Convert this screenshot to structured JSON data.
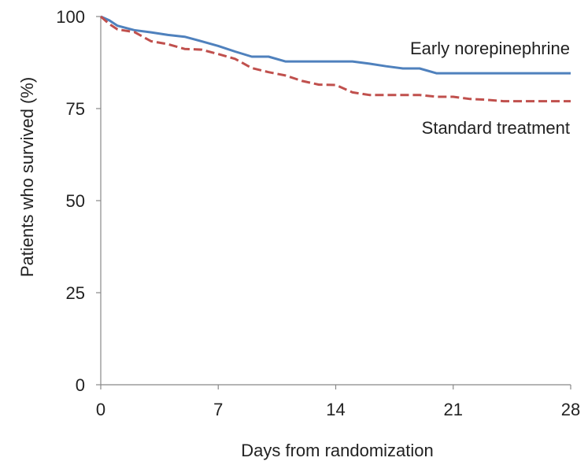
{
  "chart_data": {
    "type": "line",
    "xlabel": "Days from randomization",
    "ylabel": "Patients who survived (%)",
    "xlim": [
      0,
      28
    ],
    "ylim": [
      0,
      100
    ],
    "xticks": [
      0,
      7,
      14,
      21,
      28
    ],
    "yticks": [
      0,
      25,
      50,
      75,
      100
    ],
    "grid": false,
    "legend": "inline-labels",
    "series": [
      {
        "name": "Early norepinephrine",
        "color": "#4F81BD",
        "style": "solid",
        "x": [
          0,
          0.5,
          1,
          2,
          3,
          4,
          5,
          6,
          7,
          8,
          9,
          10,
          11,
          12,
          13,
          14,
          15,
          16,
          17,
          18,
          19,
          20,
          21,
          22,
          23,
          24,
          25,
          26,
          27,
          28
        ],
        "y": [
          100,
          99,
          97.5,
          96.3,
          95.7,
          95,
          94.5,
          93.3,
          92,
          90.5,
          89.1,
          89.1,
          87.8,
          87.8,
          87.8,
          87.8,
          87.8,
          87.2,
          86.5,
          85.9,
          85.9,
          84.6,
          84.6,
          84.6,
          84.6,
          84.6,
          84.6,
          84.6,
          84.6,
          84.6
        ]
      },
      {
        "name": "Standard treatment",
        "color": "#C0504D",
        "style": "dashed",
        "x": [
          0,
          0.5,
          1,
          2,
          3,
          4,
          5,
          6,
          7,
          8,
          9,
          10,
          11,
          12,
          13,
          14,
          15,
          16,
          17,
          18,
          19,
          20,
          21,
          22,
          23,
          24,
          25,
          26,
          27,
          28
        ],
        "y": [
          100,
          98,
          96.5,
          95.8,
          93.3,
          92.5,
          91.2,
          91,
          89.8,
          88.5,
          86,
          84.9,
          84,
          82.5,
          81.5,
          81.4,
          79.4,
          78.7,
          78.7,
          78.7,
          78.7,
          78.2,
          78.2,
          77.6,
          77.4,
          77,
          77,
          77,
          77,
          77
        ]
      }
    ]
  }
}
